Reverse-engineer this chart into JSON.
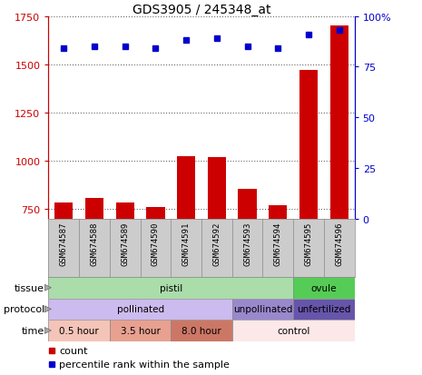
{
  "title": "GDS3905 / 245348_at",
  "samples": [
    "GSM674587",
    "GSM674588",
    "GSM674589",
    "GSM674590",
    "GSM674591",
    "GSM674592",
    "GSM674593",
    "GSM674594",
    "GSM674595",
    "GSM674596"
  ],
  "count_values": [
    782,
    805,
    785,
    758,
    1022,
    1018,
    852,
    770,
    1472,
    1700
  ],
  "percentile_values": [
    84,
    85,
    85,
    84,
    88,
    89,
    85,
    84,
    91,
    93
  ],
  "ylim_left": [
    700,
    1750
  ],
  "ylim_right": [
    0,
    100
  ],
  "yticks_left": [
    750,
    1000,
    1250,
    1500,
    1750
  ],
  "yticks_right": [
    0,
    25,
    50,
    75,
    100
  ],
  "bar_color": "#cc0000",
  "dot_color": "#0000cc",
  "tissue_row": [
    {
      "start": 0,
      "end": 8,
      "color": "#aaddaa",
      "label": "pistil"
    },
    {
      "start": 8,
      "end": 10,
      "color": "#55cc55",
      "label": "ovule"
    }
  ],
  "protocol_row": [
    {
      "start": 0,
      "end": 6,
      "color": "#ccbbee",
      "label": "pollinated"
    },
    {
      "start": 6,
      "end": 8,
      "color": "#9988cc",
      "label": "unpollinated"
    },
    {
      "start": 8,
      "end": 10,
      "color": "#6655aa",
      "label": "unfertilized"
    }
  ],
  "time_row": [
    {
      "start": 0,
      "end": 2,
      "color": "#f5c4b8",
      "label": "0.5 hour"
    },
    {
      "start": 2,
      "end": 4,
      "color": "#e8a090",
      "label": "3.5 hour"
    },
    {
      "start": 4,
      "end": 6,
      "color": "#cc7766",
      "label": "8.0 hour"
    },
    {
      "start": 6,
      "end": 10,
      "color": "#fce8e8",
      "label": "control"
    }
  ],
  "sample_bg_color": "#cccccc",
  "row_border_color": "#888888",
  "legend_count_color": "#cc0000",
  "legend_dot_color": "#0000cc"
}
